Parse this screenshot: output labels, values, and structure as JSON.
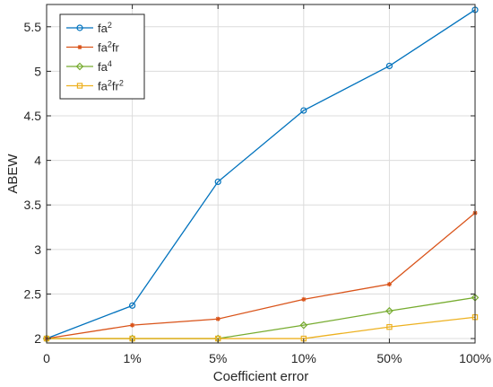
{
  "chart_data": {
    "type": "line",
    "title": "",
    "xlabel": "Coefficient error",
    "ylabel": "ABEW",
    "categories": [
      "0",
      "1%",
      "5%",
      "10%",
      "50%",
      "100%"
    ],
    "ylim": [
      1.95,
      5.75
    ],
    "yticks": [
      2,
      2.5,
      3,
      3.5,
      4,
      4.5,
      5,
      5.5
    ],
    "ytick_labels": [
      "2",
      "2.5",
      "3",
      "3.5",
      "4",
      "4.5",
      "5",
      "5.5"
    ],
    "grid": true,
    "legend_position": "top-left",
    "series": [
      {
        "name": "fa",
        "sup1": "2",
        "mid": "",
        "sup2": "",
        "values": [
          2.0,
          2.37,
          3.76,
          4.56,
          5.06,
          5.69
        ],
        "color": "#0072bd",
        "marker": "circle"
      },
      {
        "name": "fa",
        "sup1": "2",
        "mid": "fr",
        "sup2": "",
        "values": [
          2.0,
          2.15,
          2.22,
          2.44,
          2.61,
          3.41
        ],
        "color": "#d95319",
        "marker": "asterisk"
      },
      {
        "name": "fa",
        "sup1": "4",
        "mid": "",
        "sup2": "",
        "values": [
          2.0,
          2.0,
          2.0,
          2.15,
          2.31,
          2.46
        ],
        "color": "#77ac30",
        "marker": "diamond"
      },
      {
        "name": "fa",
        "sup1": "2",
        "mid": "fr",
        "sup2": "2",
        "values": [
          2.0,
          2.0,
          2.0,
          2.0,
          2.13,
          2.24
        ],
        "color": "#edb120",
        "marker": "square"
      }
    ]
  }
}
